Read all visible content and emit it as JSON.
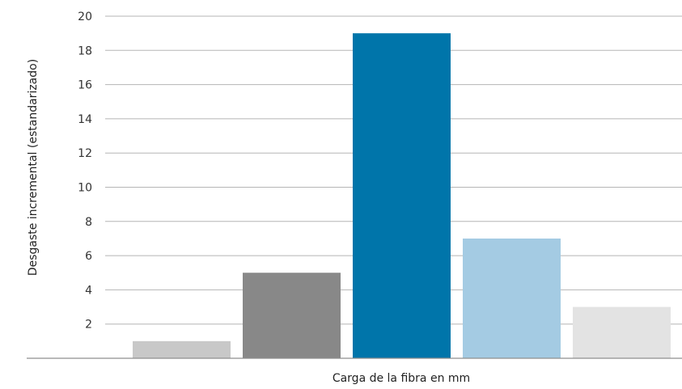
{
  "chart_data": {
    "type": "bar",
    "title": "",
    "xlabel": "Carga de la fibra en mm",
    "ylabel": "Desgaste incremental (estandarizado)",
    "ylim": [
      0,
      20
    ],
    "yticks": [
      2,
      4,
      6,
      8,
      10,
      12,
      14,
      16,
      18,
      20
    ],
    "grid": true,
    "legend": "none",
    "values": [
      1,
      5,
      19,
      7,
      3
    ],
    "colors": [
      "#c8c8c8",
      "#888888",
      "#0075aa",
      "#a4cbe3",
      "#e3e3e3"
    ]
  }
}
